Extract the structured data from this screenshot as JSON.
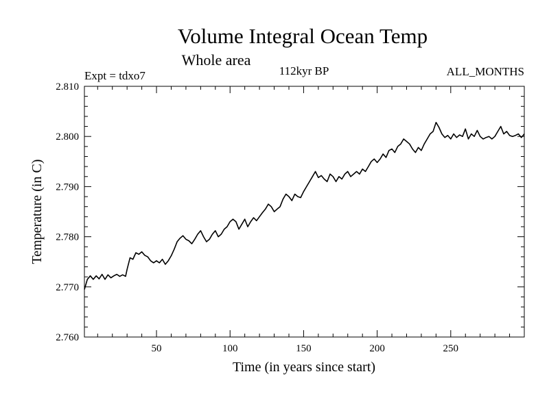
{
  "chart_data": {
    "type": "line",
    "title": "Volume Integral Ocean Temp",
    "subtitle": "Whole area",
    "annotations": {
      "left": "Expt = tdxo7",
      "center": "112kyr BP",
      "right": "ALL_MONTHS"
    },
    "xlabel": "Time (in years since start)",
    "ylabel": "Temperature (in C)",
    "xlim": [
      1,
      300
    ],
    "ylim": [
      2.76,
      2.81
    ],
    "x_ticks": [
      50,
      100,
      150,
      200,
      250
    ],
    "x_tick_labels": [
      "50",
      "100",
      "150",
      "200",
      "250"
    ],
    "y_ticks": [
      2.76,
      2.77,
      2.78,
      2.79,
      2.8,
      2.81
    ],
    "y_tick_labels": [
      "2.760",
      "2.770",
      "2.780",
      "2.790",
      "2.800",
      "2.810"
    ],
    "grid": false,
    "series": [
      {
        "color": "#000000",
        "x": [
          1,
          3,
          5,
          7,
          9,
          11,
          13,
          15,
          17,
          19,
          21,
          23,
          25,
          27,
          29,
          30,
          32,
          34,
          36,
          38,
          40,
          42,
          44,
          46,
          48,
          50,
          52,
          54,
          56,
          58,
          60,
          62,
          64,
          66,
          68,
          70,
          72,
          74,
          76,
          78,
          80,
          82,
          84,
          86,
          88,
          90,
          92,
          94,
          96,
          98,
          100,
          102,
          104,
          106,
          108,
          110,
          112,
          114,
          116,
          118,
          120,
          122,
          124,
          126,
          128,
          130,
          132,
          134,
          136,
          138,
          140,
          142,
          144,
          146,
          148,
          150,
          152,
          154,
          156,
          158,
          160,
          162,
          164,
          166,
          168,
          170,
          172,
          174,
          176,
          178,
          180,
          182,
          184,
          186,
          188,
          190,
          192,
          194,
          196,
          198,
          200,
          202,
          204,
          206,
          208,
          210,
          212,
          214,
          216,
          218,
          220,
          222,
          224,
          226,
          228,
          230,
          232,
          234,
          236,
          238,
          240,
          242,
          244,
          246,
          248,
          250,
          252,
          254,
          256,
          258,
          260,
          262,
          264,
          266,
          268,
          270,
          272,
          274,
          276,
          278,
          280,
          282,
          284,
          286,
          288,
          290,
          292,
          294,
          296,
          298,
          300
        ],
        "y": [
          2.7695,
          2.7715,
          2.7722,
          2.7715,
          2.7722,
          2.7716,
          2.7725,
          2.7715,
          2.7724,
          2.7718,
          2.7722,
          2.7725,
          2.7721,
          2.7724,
          2.7721,
          2.7735,
          2.7758,
          2.7755,
          2.7768,
          2.7765,
          2.777,
          2.7763,
          2.776,
          2.7752,
          2.7748,
          2.7752,
          2.7748,
          2.7755,
          2.7745,
          2.7752,
          2.7762,
          2.7775,
          2.779,
          2.7797,
          2.7802,
          2.7795,
          2.7792,
          2.7786,
          2.7795,
          2.7805,
          2.7812,
          2.78,
          2.779,
          2.7795,
          2.7805,
          2.7812,
          2.78,
          2.7805,
          2.7815,
          2.782,
          2.783,
          2.7835,
          2.783,
          2.7815,
          2.7825,
          2.7835,
          2.782,
          2.783,
          2.7838,
          2.7832,
          2.784,
          2.7848,
          2.7855,
          2.7865,
          2.786,
          2.785,
          2.7855,
          2.786,
          2.7875,
          2.7885,
          2.788,
          2.7872,
          2.7885,
          2.788,
          2.7878,
          2.789,
          2.79,
          2.791,
          2.792,
          2.793,
          2.7918,
          2.7922,
          2.7915,
          2.791,
          2.7925,
          2.792,
          2.791,
          2.792,
          2.7915,
          2.7925,
          2.793,
          2.792,
          2.7925,
          2.793,
          2.7925,
          2.7935,
          2.793,
          2.794,
          2.795,
          2.7955,
          2.7948,
          2.7955,
          2.7965,
          2.7958,
          2.7972,
          2.7975,
          2.7968,
          2.798,
          2.7985,
          2.7995,
          2.799,
          2.7985,
          2.7975,
          2.7968,
          2.7978,
          2.7972,
          2.7985,
          2.7995,
          2.8005,
          2.801,
          2.8028,
          2.8018,
          2.8005,
          2.7998,
          2.8002,
          2.7995,
          2.8005,
          2.7998,
          2.8003,
          2.8,
          2.8015,
          2.7995,
          2.8005,
          2.8,
          2.8012,
          2.8,
          2.7995,
          2.7998,
          2.8,
          2.7995,
          2.8,
          2.801,
          2.802,
          2.8005,
          2.801,
          2.8002,
          2.8,
          2.8002,
          2.8005,
          2.7998,
          2.8005
        ]
      }
    ]
  }
}
